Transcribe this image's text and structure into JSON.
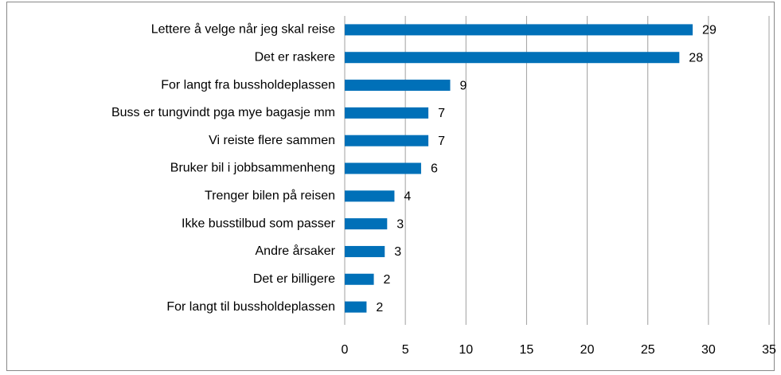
{
  "chart_data": {
    "type": "barh",
    "categories": [
      "Lettere å velge når jeg skal reise",
      "Det er raskere",
      "For langt fra bussholdeplassen",
      "Buss er tungvindt  pga mye bagasje mm",
      "Vi reiste flere sammen",
      "Bruker bil i jobbsammenheng",
      "Trenger bilen på reisen",
      "Ikke busstilbud som passer",
      "Andre årsaker",
      "Det er billigere",
      "For langt til bussholdeplassen"
    ],
    "values": [
      28.7,
      27.6,
      8.7,
      6.9,
      6.9,
      6.3,
      4.1,
      3.5,
      3.3,
      2.4,
      1.8
    ],
    "value_labels": [
      "29",
      "28",
      "9",
      "7",
      "7",
      "6",
      "4",
      "3",
      "3",
      "2",
      "2"
    ],
    "color": "#0070b8",
    "xlim": [
      0,
      35
    ],
    "xticks": [
      0,
      5,
      10,
      15,
      20,
      25,
      30,
      35
    ],
    "grid": true
  }
}
